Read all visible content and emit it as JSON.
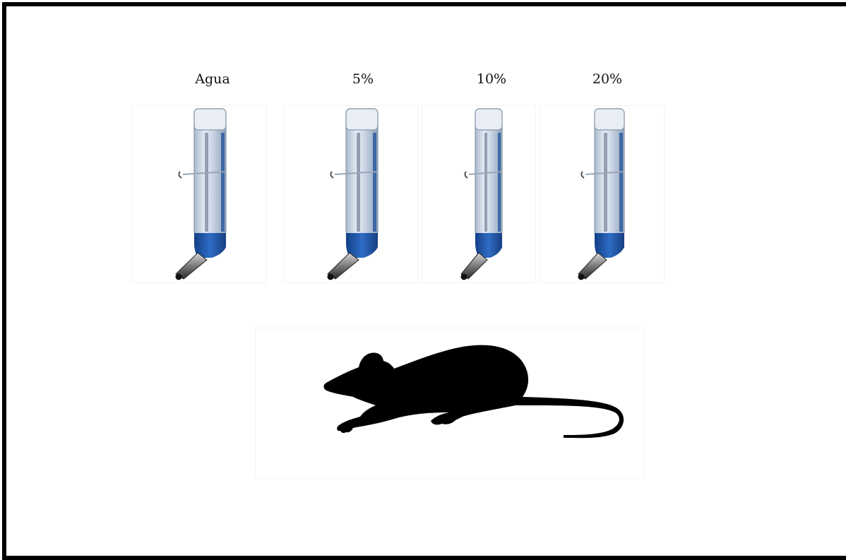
{
  "labels": {
    "water": "Agua",
    "five": "5%",
    "ten": "10%",
    "twenty": "20%"
  },
  "colors": {
    "frame": "#000000",
    "bottle_blue": "#1f56a8",
    "bottle_glass": "#c9d6e6",
    "spout_metal": "#6a6a6a",
    "mouse": "#000000"
  },
  "icons": {
    "bottles": "water-bottle-icon",
    "animal": "mouse-silhouette-icon"
  }
}
